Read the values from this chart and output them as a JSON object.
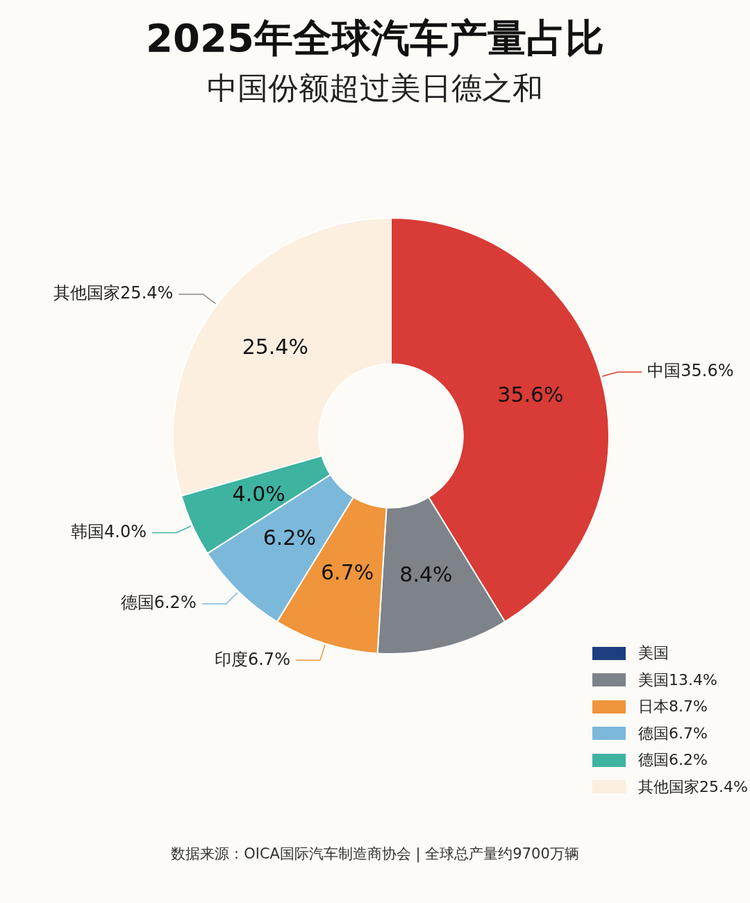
{
  "chart_data": [
    {
      "type": "donut",
      "title": "2025年全球汽车产量占比",
      "subtitle": "中国份额超过美日德之和",
      "categories": [
        "中国35.6%",
        null,
        "印度6.7%",
        "德国6.2%",
        "韩国4.0%",
        "其他国家25.4%"
      ],
      "values": [
        35.6,
        8.4,
        6.7,
        6.2,
        4.0,
        25.4
      ],
      "value_labels": [
        "35.6%",
        "8.4%",
        "6.7%",
        "6.2%",
        "4.0%",
        "25.4%"
      ],
      "colors": [
        "#d93b36",
        "#7e8289",
        "#f0953b",
        "#7bb8da",
        "#3db3a0",
        "#fcefdf"
      ],
      "annotations": [
        "数据来源：OICA国际汽车制造商协会 | 全球总产量约9700万辆"
      ]
    },
    {
      "type": "other",
      "categories": [
        "美国",
        "美国13.4%",
        "日本8.7%",
        "德国6.7%",
        "德国6.2%",
        "其他国家25.4%"
      ],
      "colors": [
        "#1d3f80",
        "#7e8289",
        "#f0953b",
        "#7bb8da",
        "#3db3a0",
        "#fcefdf"
      ]
    }
  ]
}
